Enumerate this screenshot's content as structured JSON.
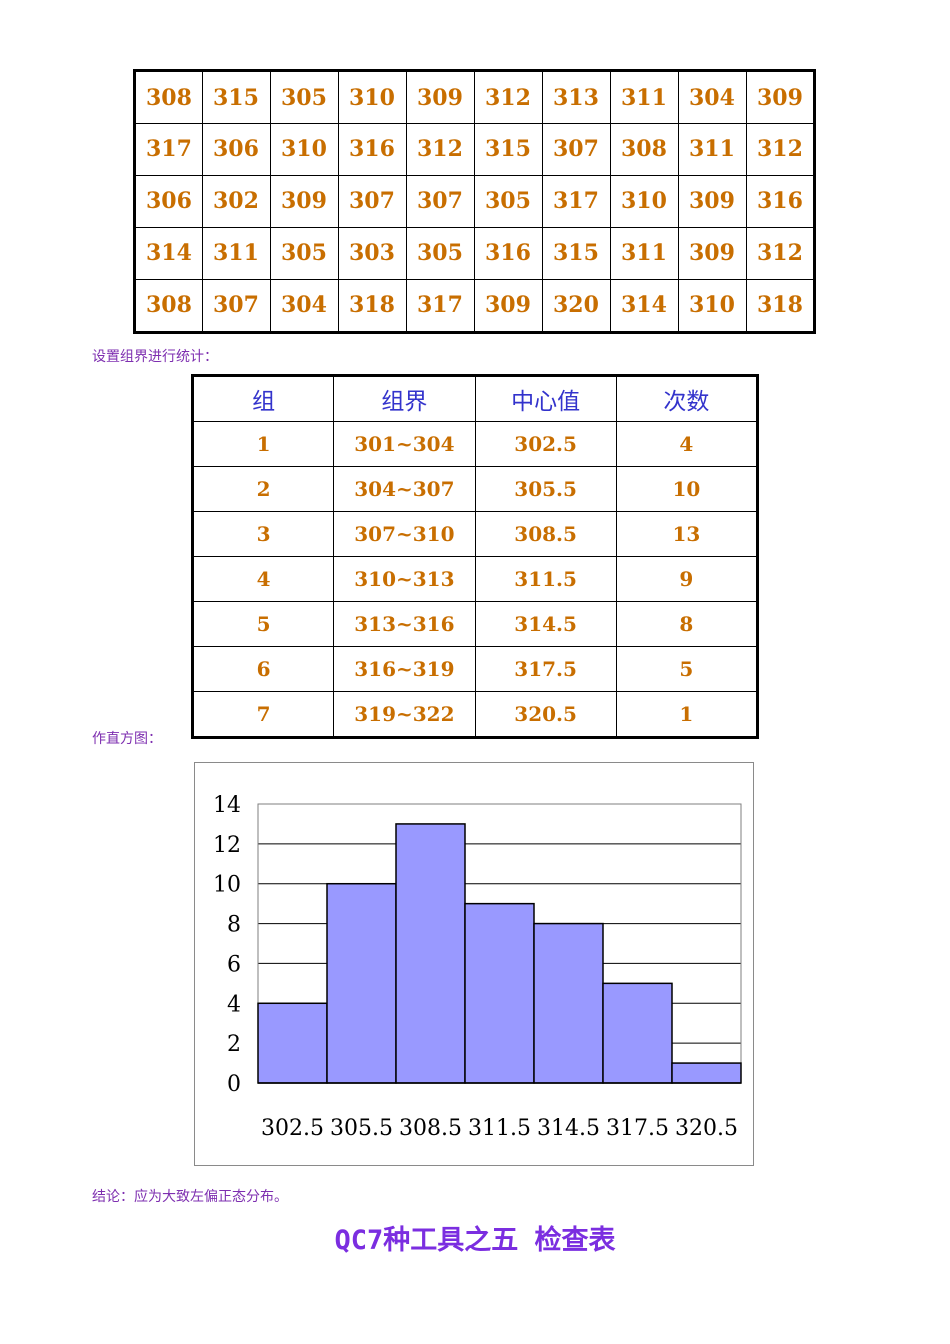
{
  "raw_data": {
    "rows": [
      [
        "308",
        "315",
        "305",
        "310",
        "309",
        "312",
        "313",
        "311",
        "304",
        "309"
      ],
      [
        "317",
        "306",
        "310",
        "316",
        "312",
        "315",
        "307",
        "308",
        "311",
        "312"
      ],
      [
        "306",
        "302",
        "309",
        "307",
        "307",
        "305",
        "317",
        "310",
        "309",
        "316"
      ],
      [
        "314",
        "311",
        "305",
        "303",
        "305",
        "316",
        "315",
        "311",
        "309",
        "312"
      ],
      [
        "308",
        "307",
        "304",
        "318",
        "317",
        "309",
        "320",
        "314",
        "310",
        "318"
      ]
    ]
  },
  "notes": {
    "group_setup": "设置组界进行统计：",
    "histogram": "作直方图：",
    "conclusion": "结论：应为大致左偏正态分布。"
  },
  "group_table": {
    "headers": [
      "组",
      "组界",
      "中心值",
      "次数"
    ],
    "rows": [
      [
        "1",
        "301~304",
        "302.5",
        "4"
      ],
      [
        "2",
        "304~307",
        "305.5",
        "10"
      ],
      [
        "3",
        "307~310",
        "308.5",
        "13"
      ],
      [
        "4",
        "310~313",
        "311.5",
        "9"
      ],
      [
        "5",
        "313~316",
        "314.5",
        "8"
      ],
      [
        "6",
        "316~319",
        "317.5",
        "5"
      ],
      [
        "7",
        "319~322",
        "320.5",
        "1"
      ]
    ]
  },
  "chart_data": {
    "type": "bar",
    "categories": [
      "302.5",
      "305.5",
      "308.5",
      "311.5",
      "314.5",
      "317.5",
      "320.5"
    ],
    "values": [
      4,
      10,
      13,
      9,
      8,
      5,
      1
    ],
    "yticks": [
      "0",
      "2",
      "4",
      "6",
      "8",
      "10",
      "12",
      "14"
    ],
    "ylim": [
      0,
      14
    ],
    "grid": true,
    "bar_color": "#9999ff"
  },
  "section_title": "QC7种工具之五  检查表"
}
